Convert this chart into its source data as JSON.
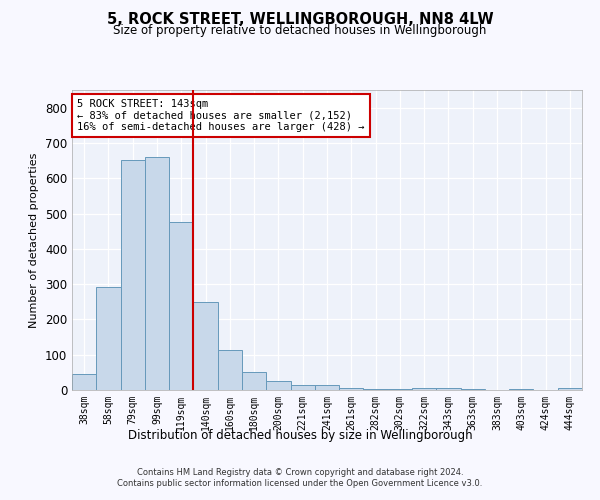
{
  "title": "5, ROCK STREET, WELLINGBOROUGH, NN8 4LW",
  "subtitle": "Size of property relative to detached houses in Wellingborough",
  "xlabel": "Distribution of detached houses by size in Wellingborough",
  "ylabel": "Number of detached properties",
  "bar_color": "#c8d8ea",
  "bar_edge_color": "#6699bb",
  "background_color": "#eef2fa",
  "grid_color": "#ffffff",
  "categories": [
    "38sqm",
    "58sqm",
    "79sqm",
    "99sqm",
    "119sqm",
    "140sqm",
    "160sqm",
    "180sqm",
    "200sqm",
    "221sqm",
    "241sqm",
    "261sqm",
    "282sqm",
    "302sqm",
    "322sqm",
    "343sqm",
    "363sqm",
    "383sqm",
    "403sqm",
    "424sqm",
    "444sqm"
  ],
  "values": [
    45,
    291,
    651,
    660,
    477,
    250,
    113,
    50,
    25,
    14,
    13,
    7,
    2,
    2,
    7,
    7,
    2,
    0,
    2,
    0,
    5
  ],
  "vline_color": "#cc0000",
  "annotation_text": "5 ROCK STREET: 143sqm\n← 83% of detached houses are smaller (2,152)\n16% of semi-detached houses are larger (428) →",
  "annotation_box_color": "#ffffff",
  "annotation_box_edge_color": "#cc0000",
  "footnote1": "Contains HM Land Registry data © Crown copyright and database right 2024.",
  "footnote2": "Contains public sector information licensed under the Open Government Licence v3.0.",
  "ylim": [
    0,
    850
  ],
  "yticks": [
    0,
    100,
    200,
    300,
    400,
    500,
    600,
    700,
    800
  ],
  "fig_width": 6.0,
  "fig_height": 5.0,
  "dpi": 100
}
